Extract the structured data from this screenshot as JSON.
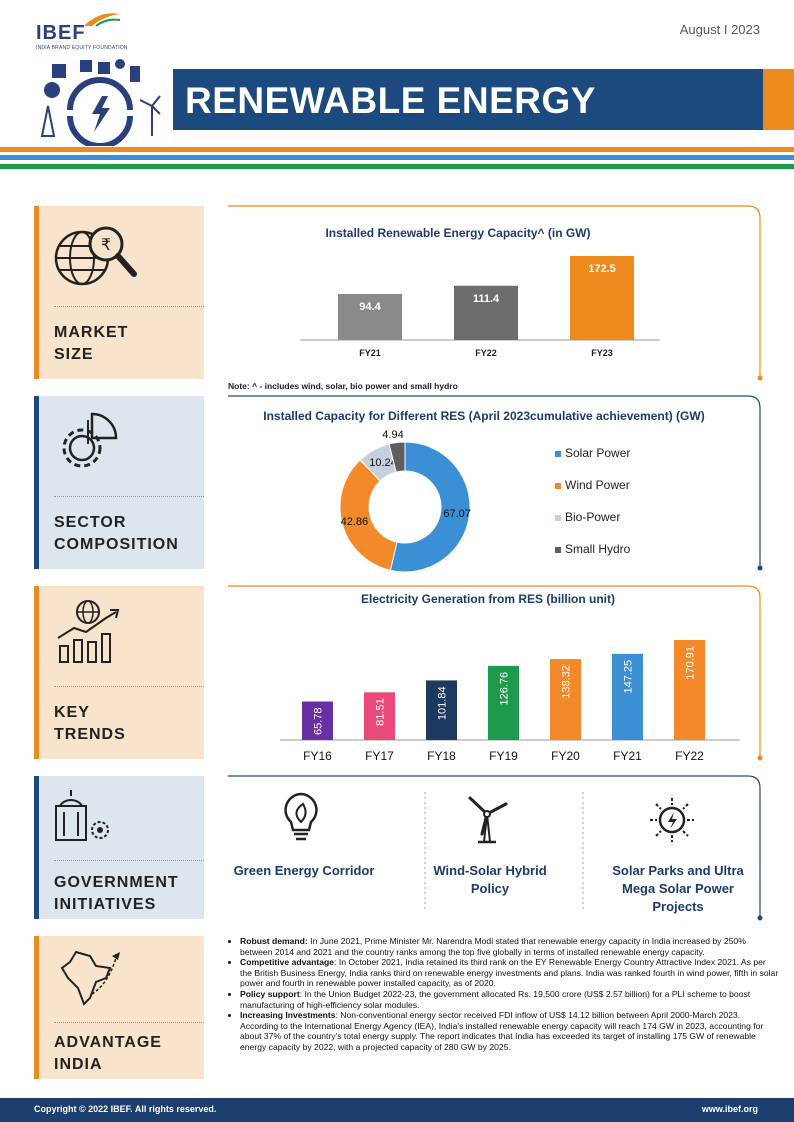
{
  "header": {
    "logo": "IBEF",
    "logo_sub": "INDIA BRAND EQUITY FOUNDATION",
    "date": "August I 2023",
    "title": "RENEWABLE ENERGY"
  },
  "colors": {
    "navy": "#1c4a7e",
    "orange": "#ec8a1d",
    "green": "#1d9a4e",
    "blue": "#3b8fd4"
  },
  "sections": {
    "market": {
      "line1": "MARKET",
      "line2": "SIZE",
      "icon": "globe-money-magnifier-icon"
    },
    "sector": {
      "line1": "SECTOR",
      "line2": "COMPOSITION",
      "icon": "gear-pie-chart-icon"
    },
    "trends": {
      "line1": "KEY",
      "line2": "TRENDS",
      "icon": "globe-rising-bars-icon"
    },
    "government": {
      "line1": "GOVERNMENT",
      "line2": "INITIATIVES",
      "icon": "building-gear-icon"
    },
    "advantage": {
      "line1": "ADVANTAGE",
      "line2": "INDIA",
      "icon": "india-map-plane-icon"
    }
  },
  "note": "Note: ^ - includes wind, solar, bio power and small hydro",
  "chart_data": [
    {
      "type": "bar",
      "title": "Installed Renewable Energy Capacity^ (in GW)",
      "categories": [
        "FY21",
        "FY22",
        "FY23"
      ],
      "values": [
        94.4,
        111.4,
        172.5
      ],
      "value_labels": [
        "94.4",
        "111.4",
        "172.5"
      ],
      "colors": [
        "#8a8a8a",
        "#6d6d6d",
        "#ec8a1d"
      ],
      "ylim": [
        0,
        172.5
      ]
    },
    {
      "type": "pie",
      "title": "Installed Capacity for Different RES (April 2023cumulative achievement) (GW)",
      "categories": [
        "Solar Power",
        "Wind Power",
        "Bio-Power",
        "Small Hydro"
      ],
      "values": [
        67.07,
        42.86,
        10.24,
        4.94
      ],
      "value_labels": [
        "67.07",
        "42.86",
        "10.24",
        "4.94"
      ],
      "colors": [
        "#3b8fd4",
        "#f28a2a",
        "#c5cfe0",
        "#5e5e5e"
      ],
      "legend": "right"
    },
    {
      "type": "bar",
      "title": "Electricity Generation from RES (billion unit)",
      "categories": [
        "FY16",
        "FY17",
        "FY18",
        "FY19",
        "FY20",
        "FY21",
        "FY22"
      ],
      "values": [
        65.78,
        81.51,
        101.84,
        126.76,
        138.32,
        147.25,
        170.91
      ],
      "value_labels": [
        "65.78",
        "81.51",
        "101.84",
        "126.76",
        "138.32",
        "147.25",
        "170.91"
      ],
      "colors": [
        "#6a2fa0",
        "#e94a7a",
        "#1c3a5e",
        "#1d9a4e",
        "#f28a2a",
        "#3b8fd4",
        "#f28a2a"
      ],
      "ylim": [
        0,
        170.91
      ]
    }
  ],
  "government": [
    {
      "label": "Green Energy Corridor",
      "icon": "lightbulb-leaf-icon"
    },
    {
      "label": "Wind-Solar Hybrid Policy",
      "icon": "wind-turbine-icon"
    },
    {
      "label": "Solar Parks and Ultra Mega Solar Power Projects",
      "icon": "sun-bolt-icon"
    }
  ],
  "advantages": [
    {
      "heading": "Robust demand:",
      "text": " In June 2021, Prime Minister Mr. Narendra Modi stated that renewable energy capacity in India increased by 250% between 2014 and 2021 and the country ranks among the top five globally in terms of installed renewable energy capacity."
    },
    {
      "heading": "Competitive advantage",
      "text": ": In October 2021, India retained its third rank on the EY Renewable Energy Country Attractive Index 2021. As per the British Business Energy, India ranks third on renewable energy investments and plans. India was ranked fourth in wind power, fifth in solar power and fourth in renewable power installed capacity, as of 2020."
    },
    {
      "heading": "Policy support",
      "text": ": In the Union Budget 2022-23, the government allocated Rs. 19,500 crore (US$ 2.57 billion) for a PLI scheme to boost manufacturing of high-efficiency solar modules."
    },
    {
      "heading": "Increasing Investments",
      "text": ": Non-conventional energy sector received FDI inflow of US$ 14.12 billion between April 2000-March 2023. According to the International Energy Agency (IEA), India's installed renewable energy capacity will reach 174 GW in 2023, accounting for about 37% of the country's total energy supply. The report indicates that India has exceeded its target of installing 175 GW of renewable energy capacity by 2022, with a projected capacity of 280 GW by 2025."
    }
  ],
  "footer": {
    "copyright": "Copyright © 2022 IBEF. All rights reserved.",
    "site": "www.ibef.org"
  }
}
